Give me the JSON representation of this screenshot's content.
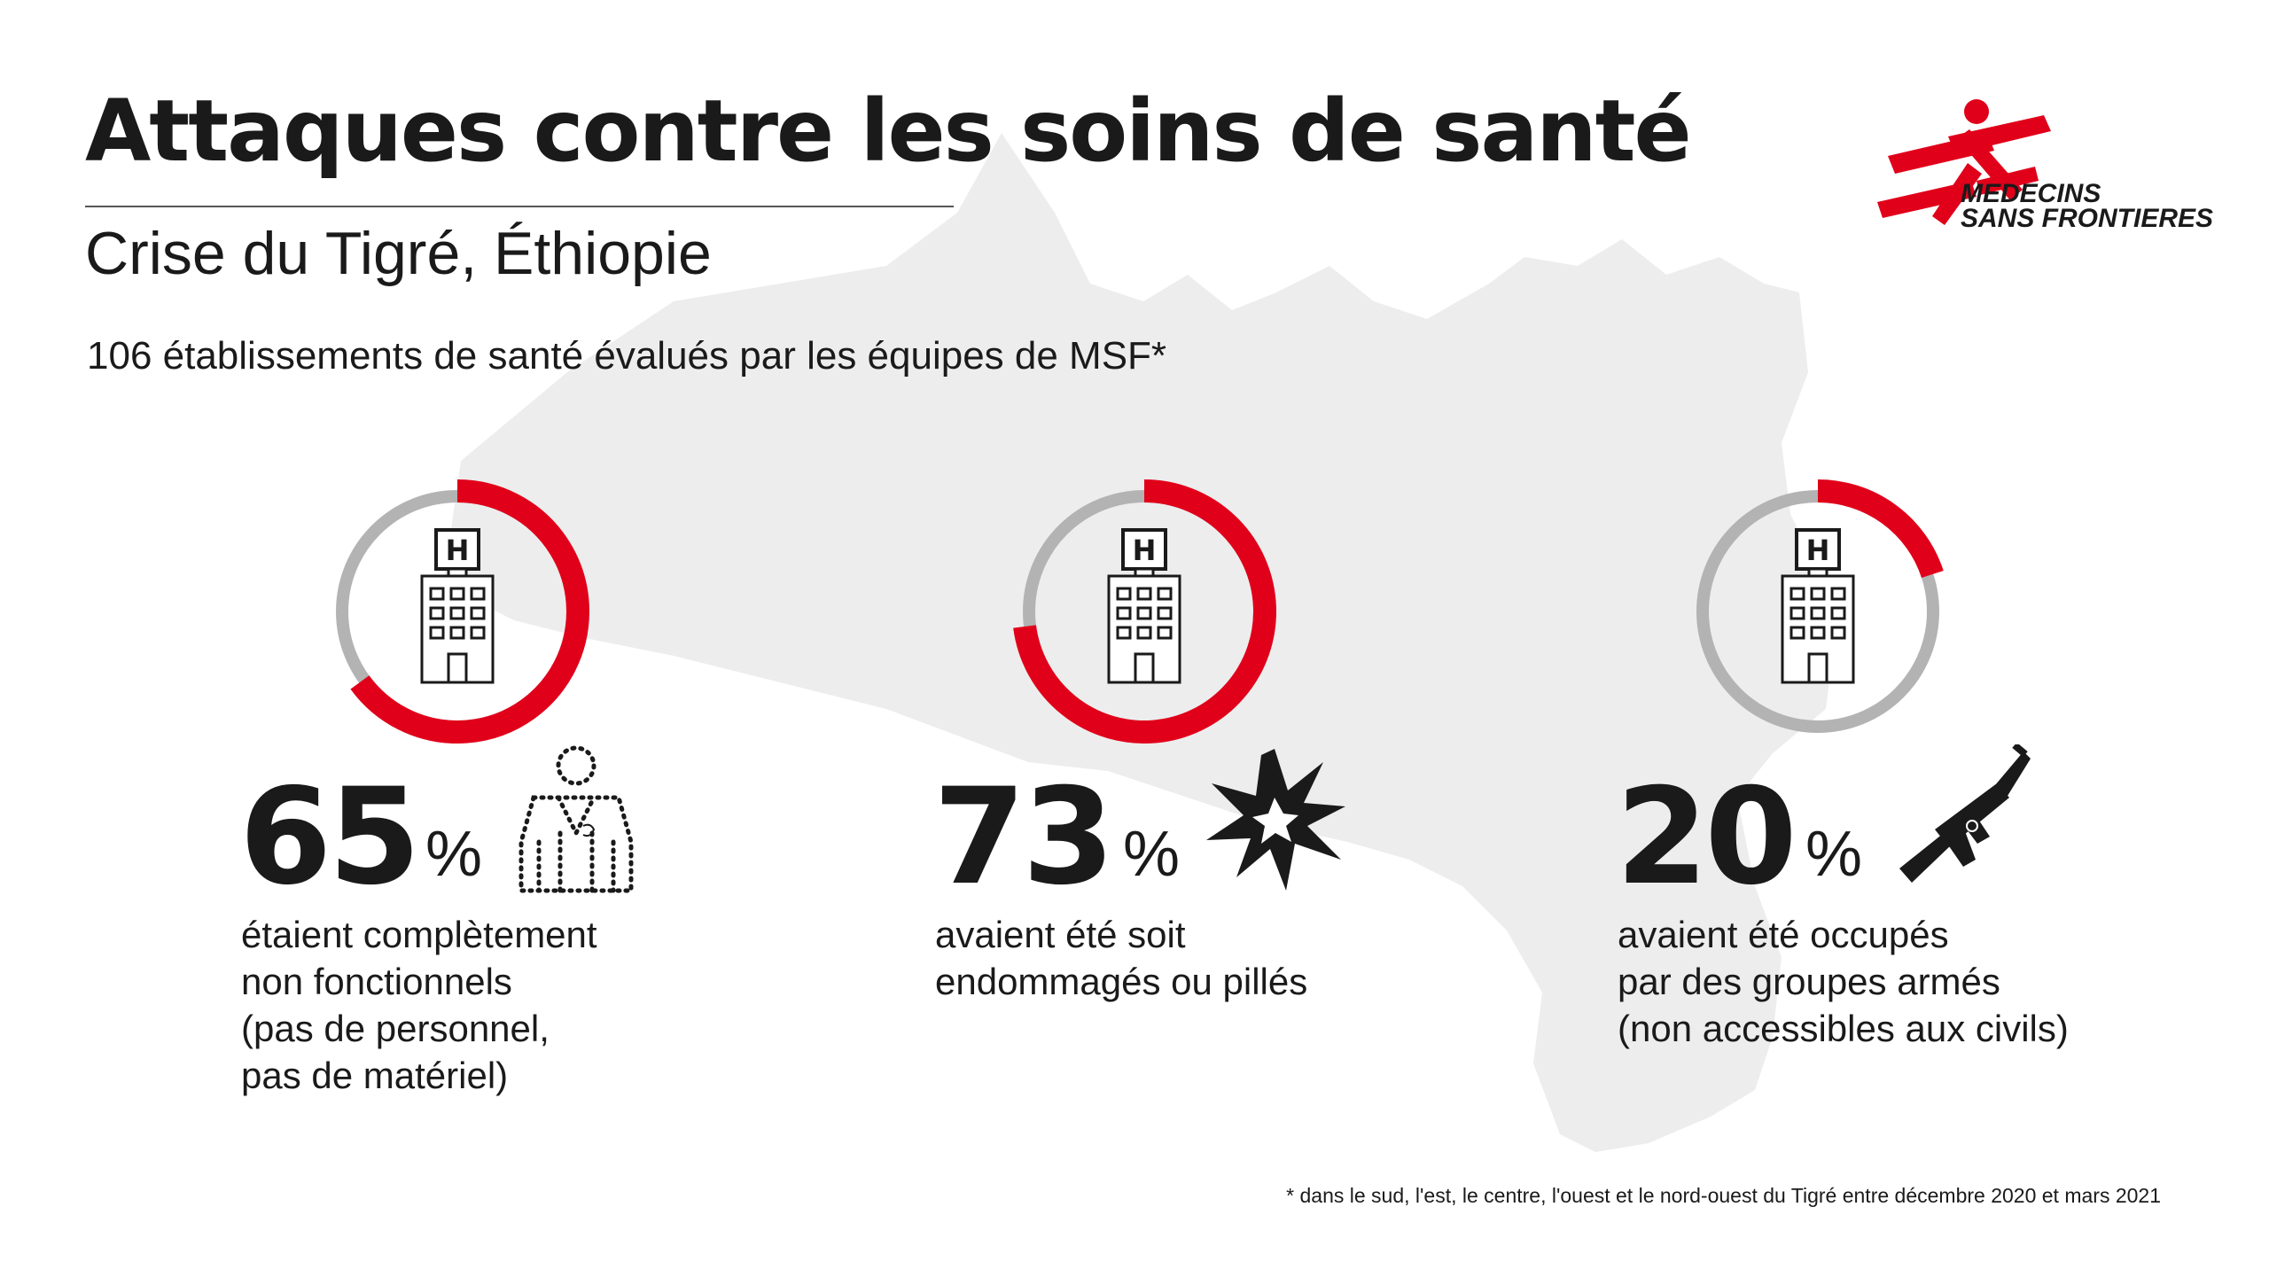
{
  "header": {
    "title": "Attaques contre les soins de santé",
    "subtitle": "Crise du Tigré, Éthiopie",
    "intro": "106 établissements de santé évalués par les équipes de MSF*"
  },
  "logo": {
    "line1": "MEDECINS",
    "line2": "SANS FRONTIERES"
  },
  "chart_data": {
    "type": "pie",
    "series": [
      {
        "value": 65,
        "number": "65",
        "unit": "%",
        "icon": "health-worker-dotted-outline-icon",
        "description": [
          "étaient complètement",
          "non fonctionnels",
          "(pas de personnel,",
          "pas de matériel)"
        ]
      },
      {
        "value": 73,
        "number": "73",
        "unit": "%",
        "icon": "explosion-icon",
        "description": [
          "avaient été soit",
          "endommagés ou pillés"
        ]
      },
      {
        "value": 20,
        "number": "20",
        "unit": "%",
        "icon": "rifle-icon",
        "description": [
          "avaient été occupés",
          "par des groupes armés",
          "(non accessibles aux civils)"
        ]
      }
    ],
    "center_icon": "hospital-building-icon",
    "center_icon_letter": "H",
    "colors": {
      "filled": "#e1001a",
      "remaining": "#b3b3b3"
    }
  },
  "footnote": "* dans le sud, l'est, le centre, l'ouest et le nord-ouest du Tigré entre décembre 2020 et mars 2021",
  "colors": {
    "map": "#ededed",
    "text": "#1a1a1a",
    "brand": "#e1001a"
  }
}
